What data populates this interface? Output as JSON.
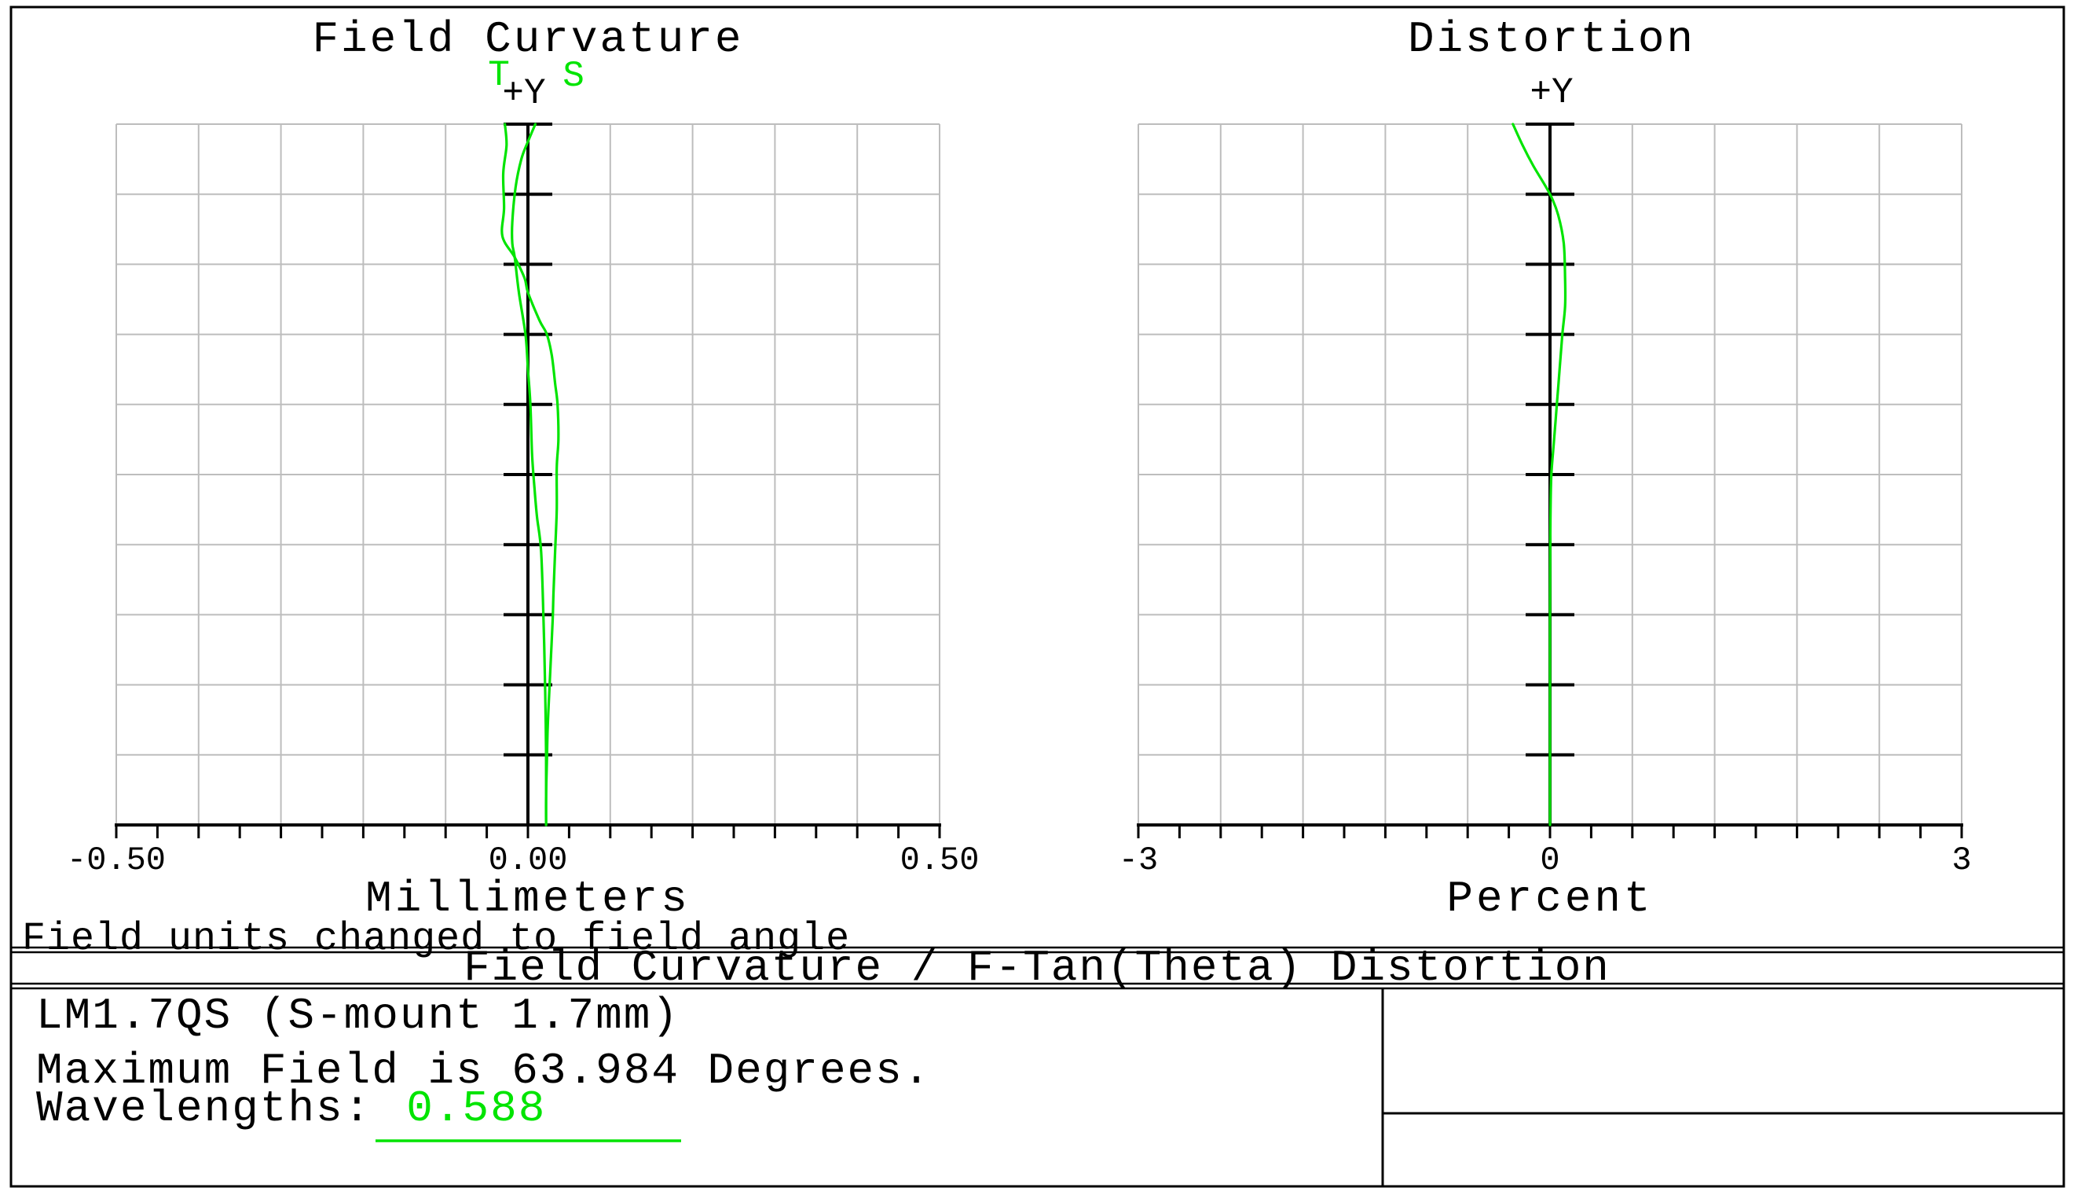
{
  "window_title": "Field Curvature / F-Tan(Theta) Distortion",
  "colors": {
    "curve_green": "#00e400",
    "grid_gray": "#bdbdbd",
    "axis_black": "#000000",
    "background": "#ffffff"
  },
  "left_plot": {
    "title": "Field Curvature",
    "tangential_label": "T",
    "sagittal_label": "S",
    "y_axis_label": "+Y",
    "x_ticks": [
      "-0.50",
      "0.00",
      "0.50"
    ],
    "x_axis_label": "Millimeters"
  },
  "right_plot": {
    "title": "Distortion",
    "y_axis_label": "+Y",
    "x_ticks": [
      "-3",
      "0",
      "3"
    ],
    "x_axis_label": "Percent"
  },
  "note": "Field units changed to field angle",
  "title_bar": "Field Curvature / F-Tan(Theta) Distortion",
  "info": {
    "lens_title": "LM1.7QS (S-mount 1.7mm)",
    "max_field": "Maximum Field is 63.984 Degrees.",
    "wavelengths_label": "Wavelengths:",
    "wavelength_value": "0.588"
  },
  "chart_data": [
    {
      "type": "line",
      "title": "Field Curvature",
      "xlabel": "Millimeters",
      "ylabel": "+Y (normalized field, max field 63.984 deg at top)",
      "xlim": [
        -0.5,
        0.5
      ],
      "ylim": [
        0,
        1
      ],
      "grid": "10x10",
      "legend_position": "top",
      "series": [
        {
          "name": "T",
          "color": "#00e400",
          "points_field_value": [
            [
              0.0,
              0.022
            ],
            [
              0.04,
              0.022
            ],
            [
              0.09,
              0.023
            ],
            [
              0.14,
              0.024
            ],
            [
              0.19,
              0.026
            ],
            [
              0.24,
              0.028
            ],
            [
              0.29,
              0.03
            ],
            [
              0.33,
              0.031
            ],
            [
              0.39,
              0.033
            ],
            [
              0.45,
              0.035
            ],
            [
              0.51,
              0.035
            ],
            [
              0.55,
              0.037
            ],
            [
              0.6,
              0.036
            ],
            [
              0.63,
              0.033
            ],
            [
              0.67,
              0.029
            ],
            [
              0.7,
              0.023
            ],
            [
              0.72,
              0.014
            ],
            [
              0.76,
              0.0
            ],
            [
              0.78,
              -0.004
            ],
            [
              0.81,
              -0.016
            ],
            [
              0.84,
              -0.031
            ],
            [
              0.88,
              -0.029
            ],
            [
              0.93,
              -0.03
            ],
            [
              0.97,
              -0.026
            ],
            [
              1.0,
              -0.028
            ]
          ]
        },
        {
          "name": "S",
          "color": "#00e400",
          "points_field_value": [
            [
              0.0,
              0.022
            ],
            [
              0.1,
              0.022
            ],
            [
              0.19,
              0.021
            ],
            [
              0.29,
              0.019
            ],
            [
              0.39,
              0.016
            ],
            [
              0.44,
              0.011
            ],
            [
              0.48,
              0.008
            ],
            [
              0.53,
              0.005
            ],
            [
              0.6,
              0.003
            ],
            [
              0.65,
              0.0
            ],
            [
              0.7,
              -0.003
            ],
            [
              0.76,
              -0.011
            ],
            [
              0.81,
              -0.016
            ],
            [
              0.83,
              -0.019
            ],
            [
              0.86,
              -0.019
            ],
            [
              0.91,
              -0.015
            ],
            [
              0.95,
              -0.008
            ],
            [
              0.975,
              0.0
            ],
            [
              1.0,
              0.009
            ]
          ]
        }
      ]
    },
    {
      "type": "line",
      "title": "Distortion",
      "xlabel": "Percent",
      "ylabel": "+Y (normalized field, max field 63.984 deg at top)",
      "xlim": [
        -3,
        3
      ],
      "ylim": [
        0,
        1
      ],
      "grid": "10x10",
      "series": [
        {
          "name": "Distortion",
          "color": "#00e400",
          "points_field_value": [
            [
              0.0,
              0.0
            ],
            [
              0.1,
              0.0
            ],
            [
              0.2,
              0.0
            ],
            [
              0.3,
              0.0
            ],
            [
              0.4,
              0.002
            ],
            [
              0.45,
              0.004
            ],
            [
              0.5,
              0.01
            ],
            [
              0.55,
              0.03
            ],
            [
              0.6,
              0.05
            ],
            [
              0.65,
              0.07
            ],
            [
              0.7,
              0.09
            ],
            [
              0.74,
              0.11
            ],
            [
              0.78,
              0.11
            ],
            [
              0.83,
              0.1
            ],
            [
              0.87,
              0.06
            ],
            [
              0.9,
              0.0
            ],
            [
              0.94,
              -0.12
            ],
            [
              0.97,
              -0.2
            ],
            [
              1.0,
              -0.27
            ]
          ]
        }
      ]
    }
  ]
}
